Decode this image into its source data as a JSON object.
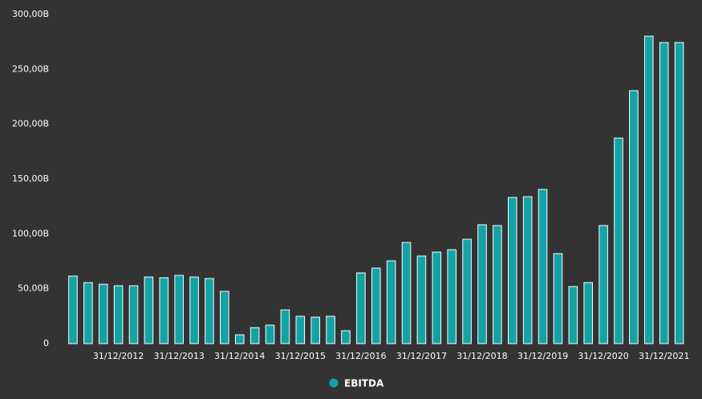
{
  "chart_data": {
    "type": "bar",
    "categories": [
      null,
      null,
      null,
      "31/12/2012",
      null,
      null,
      null,
      "31/12/2013",
      null,
      null,
      null,
      "31/12/2014",
      null,
      null,
      null,
      "31/12/2015",
      null,
      null,
      null,
      "31/12/2016",
      null,
      null,
      null,
      "31/12/2017",
      null,
      null,
      null,
      "31/12/2018",
      null,
      null,
      null,
      "31/12/2019",
      null,
      null,
      null,
      "31/12/2020",
      null,
      null,
      null,
      "31/12/2021",
      null
    ],
    "series": [
      {
        "name": "EBITDA",
        "color": "#13a3a6",
        "values": [
          61.5,
          55.6,
          54.1,
          52.7,
          52.7,
          60.7,
          60,
          62.2,
          60.7,
          59.3,
          47.6,
          8,
          14.6,
          16.8,
          30.7,
          24.9,
          24.1,
          24.9,
          11.7,
          64.4,
          68.8,
          75.4,
          92.2,
          79.8,
          83.4,
          85.6,
          95.1,
          108.3,
          107.6,
          133.2,
          133.9,
          140.5,
          82,
          52,
          55.6,
          107.6,
          187.3,
          230.5,
          280.2,
          274.4,
          274.4
        ]
      }
    ],
    "ylim": [
      0,
      300
    ],
    "yticks": [
      0,
      {
        "value": 50,
        "label": "50,00B"
      },
      {
        "value": 100,
        "label": "100,00B"
      },
      {
        "value": 150,
        "label": "150,00B"
      },
      {
        "value": 200,
        "label": "200,00B"
      },
      {
        "value": 250,
        "label": "250,00B"
      },
      {
        "value": 300,
        "label": "300,00B"
      }
    ],
    "grid": false,
    "legend": "bottom"
  }
}
